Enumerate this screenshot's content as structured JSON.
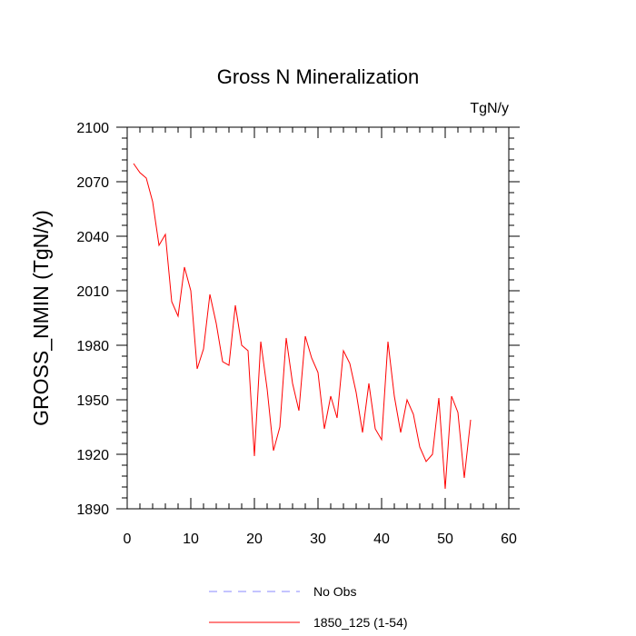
{
  "chart_data": {
    "type": "line",
    "title": "Gross N Mineralization",
    "units_label": "TgN/y",
    "xlabel": "",
    "ylabel": "GROSS_NMIN  (TgN/y)",
    "xlim": [
      0,
      60
    ],
    "ylim": [
      1890,
      2100
    ],
    "x_ticks": [
      0,
      10,
      20,
      30,
      40,
      50,
      60
    ],
    "y_ticks": [
      1890,
      1920,
      1950,
      1980,
      2010,
      2040,
      2070,
      2100
    ],
    "x_minor_step": 2,
    "y_minor_step": 6,
    "series": [
      {
        "name": "1850_125 (1-54)",
        "color": "#ff0000",
        "style": "solid",
        "x": [
          1,
          2,
          3,
          4,
          5,
          6,
          7,
          8,
          9,
          10,
          11,
          12,
          13,
          14,
          15,
          16,
          17,
          18,
          19,
          20,
          21,
          22,
          23,
          24,
          25,
          26,
          27,
          28,
          29,
          30,
          31,
          32,
          33,
          34,
          35,
          36,
          37,
          38,
          39,
          40,
          41,
          42,
          43,
          44,
          45,
          46,
          47,
          48,
          49,
          50,
          51,
          52,
          53,
          54
        ],
        "values": [
          2080,
          2075,
          2072,
          2059,
          2035,
          2041,
          2004,
          1996,
          2023,
          2010,
          1967,
          1978,
          2008,
          1992,
          1971,
          1969,
          2002,
          1980,
          1977,
          1919,
          1982,
          1956,
          1922,
          1935,
          1984,
          1959,
          1944,
          1985,
          1973,
          1965,
          1934,
          1952,
          1940,
          1977,
          1970,
          1954,
          1932,
          1959,
          1934,
          1928,
          1982,
          1952,
          1932,
          1950,
          1942,
          1924,
          1916,
          1920,
          1951,
          1901,
          1952,
          1943,
          1907,
          1939
        ]
      }
    ],
    "legend": [
      {
        "label": "No Obs",
        "color": "#8888ff",
        "style": "dashed"
      },
      {
        "label": "1850_125 (1-54)",
        "color": "#ff0000",
        "style": "solid"
      }
    ],
    "legend_position": "bottom-center"
  }
}
